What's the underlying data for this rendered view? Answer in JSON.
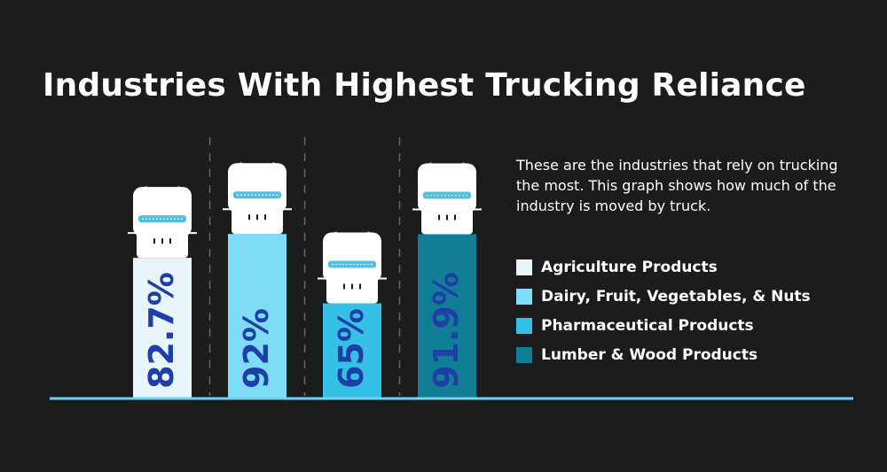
{
  "title": "Industries With Highest Trucking Reliance",
  "description": "These are the industries that rely on trucking the most. This graph shows how much of the industry is moved by truck.",
  "colors": {
    "background": "#1c1c1c",
    "value_text": "#1e3fa8",
    "baseline": "#6fd3f0",
    "divider": "#5a6670"
  },
  "legend": [
    {
      "label": "Agriculture Products",
      "color": "#e8f6fc"
    },
    {
      "label": "Dairy, Fruit, Vegetables, & Nuts",
      "color": "#7fdcf6"
    },
    {
      "label": "Pharmaceutical Products",
      "color": "#35c0e6"
    },
    {
      "label": "Lumber & Wood Products",
      "color": "#127e96"
    }
  ],
  "chart_data": {
    "type": "bar",
    "categories": [
      "Agriculture Products",
      "Dairy, Fruit, Vegetables, & Nuts",
      "Pharmaceutical Products",
      "Lumber & Wood Products"
    ],
    "values": [
      82.7,
      92,
      65,
      91.9
    ],
    "labels": [
      "82.7%",
      "92%",
      "65%",
      "91.9%"
    ],
    "colors": [
      "#e8f6fc",
      "#7fdcf6",
      "#35c0e6",
      "#127e96"
    ],
    "ylim": [
      0,
      100
    ],
    "unit": "%",
    "grid": false,
    "legend_position": "right",
    "bar_style": "truck-top-view"
  }
}
